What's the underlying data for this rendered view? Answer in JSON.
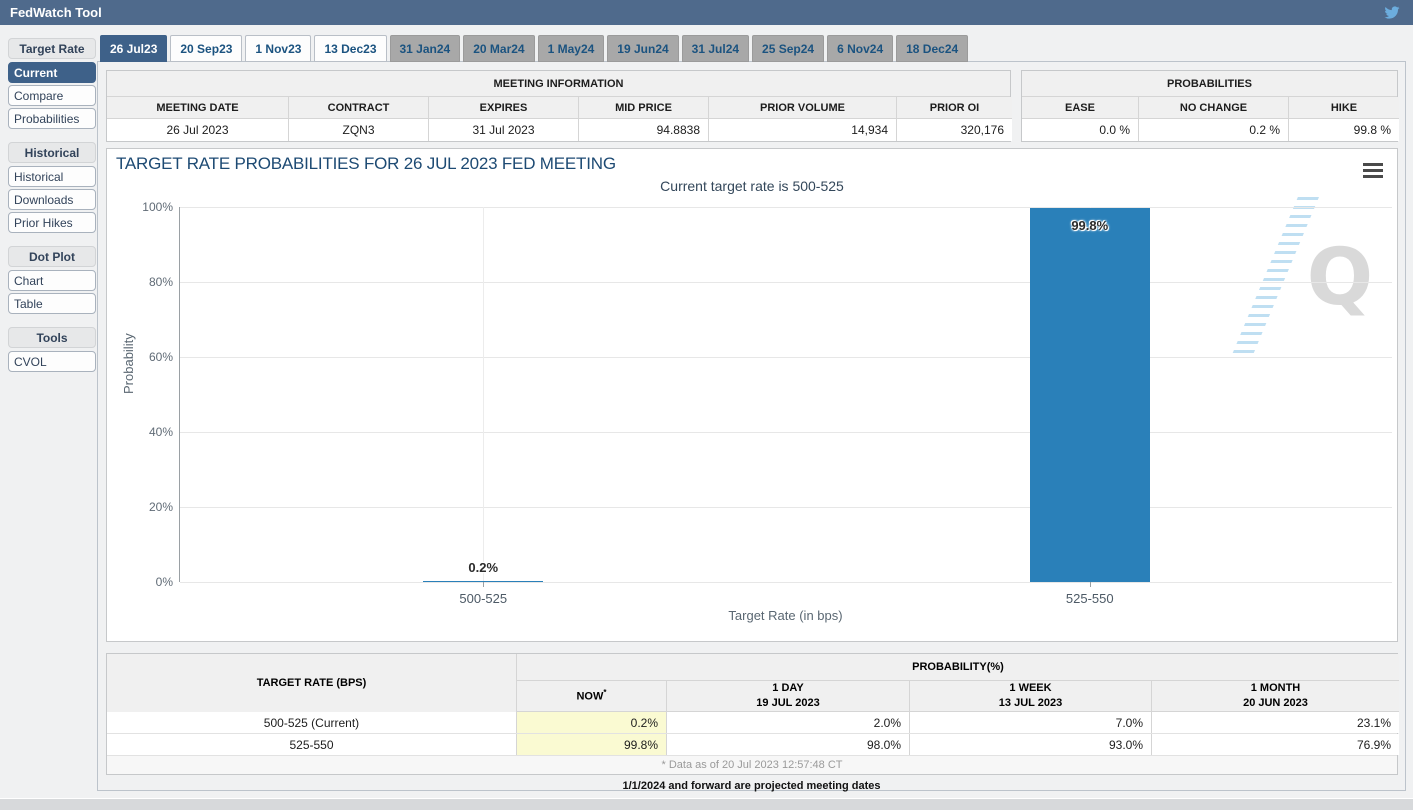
{
  "app": {
    "title": "FedWatch Tool",
    "header_color": "#4f6a8c",
    "accent_color": "#3e6189",
    "bar_color": "#2a80b9"
  },
  "sidebar": {
    "sections": [
      {
        "header": "Target Rate",
        "items": [
          {
            "label": "Current",
            "selected": true
          },
          {
            "label": "Compare",
            "selected": false
          },
          {
            "label": "Probabilities",
            "selected": false
          }
        ]
      },
      {
        "header": "Historical",
        "items": [
          {
            "label": "Historical",
            "selected": false
          },
          {
            "label": "Downloads",
            "selected": false
          },
          {
            "label": "Prior Hikes",
            "selected": false
          }
        ]
      },
      {
        "header": "Dot Plot",
        "items": [
          {
            "label": "Chart",
            "selected": false
          },
          {
            "label": "Table",
            "selected": false
          }
        ]
      },
      {
        "header": "Tools",
        "items": [
          {
            "label": "CVOL",
            "selected": false
          }
        ]
      }
    ]
  },
  "tabs": [
    {
      "label": "26 Jul23",
      "selected": true,
      "projected": false
    },
    {
      "label": "20 Sep23",
      "selected": false,
      "projected": false
    },
    {
      "label": "1 Nov23",
      "selected": false,
      "projected": false
    },
    {
      "label": "13 Dec23",
      "selected": false,
      "projected": false
    },
    {
      "label": "31 Jan24",
      "selected": false,
      "projected": true
    },
    {
      "label": "20 Mar24",
      "selected": false,
      "projected": true
    },
    {
      "label": "1 May24",
      "selected": false,
      "projected": true
    },
    {
      "label": "19 Jun24",
      "selected": false,
      "projected": true
    },
    {
      "label": "31 Jul24",
      "selected": false,
      "projected": true
    },
    {
      "label": "25 Sep24",
      "selected": false,
      "projected": true
    },
    {
      "label": "6 Nov24",
      "selected": false,
      "projected": true
    },
    {
      "label": "18 Dec24",
      "selected": false,
      "projected": true
    }
  ],
  "meeting_info": {
    "title": "MEETING INFORMATION",
    "headers": [
      "MEETING DATE",
      "CONTRACT",
      "EXPIRES",
      "MID PRICE",
      "PRIOR VOLUME",
      "PRIOR OI"
    ],
    "values": [
      "26 Jul 2023",
      "ZQN3",
      "31 Jul 2023",
      "94.8838",
      "14,934",
      "320,176"
    ]
  },
  "probabilities_summary": {
    "title": "PROBABILITIES",
    "headers": [
      "EASE",
      "NO CHANGE",
      "HIKE"
    ],
    "values": [
      "0.0 %",
      "0.2 %",
      "99.8 %"
    ]
  },
  "chart_data": {
    "type": "bar",
    "title": "TARGET RATE PROBABILITIES FOR 26 JUL 2023 FED MEETING",
    "subtitle": "Current target rate is 500-525",
    "categories": [
      "500-525",
      "525-550"
    ],
    "values": [
      0.2,
      99.8
    ],
    "value_labels": [
      "0.2%",
      "99.8%"
    ],
    "xlabel": "Target Rate (in bps)",
    "ylabel": "Probability",
    "ylim": [
      0,
      100
    ],
    "yticks": [
      0,
      20,
      40,
      60,
      80,
      100
    ],
    "ytick_labels": [
      "0%",
      "20%",
      "40%",
      "60%",
      "80%",
      "100%"
    ],
    "grid": true,
    "legend": "none",
    "bar_color": "#2a80b9",
    "watermark": "Q"
  },
  "prob_table": {
    "col1_header": "TARGET RATE (BPS)",
    "group_header": "PROBABILITY(%)",
    "sub_headers": [
      {
        "line1": "NOW",
        "sup": "*",
        "line2": ""
      },
      {
        "line1": "1 DAY",
        "sup": "",
        "line2": "19 JUL 2023"
      },
      {
        "line1": "1 WEEK",
        "sup": "",
        "line2": "13 JUL 2023"
      },
      {
        "line1": "1 MONTH",
        "sup": "",
        "line2": "20 JUN 2023"
      }
    ],
    "rows": [
      {
        "rate": "500-525 (Current)",
        "now": "0.2%",
        "day": "2.0%",
        "week": "7.0%",
        "month": "23.1%"
      },
      {
        "rate": "525-550",
        "now": "99.8%",
        "day": "98.0%",
        "week": "93.0%",
        "month": "76.9%"
      }
    ],
    "footnote": "* Data as of 20 Jul 2023 12:57:48 CT"
  },
  "projected_note": "1/1/2024 and forward are projected meeting dates"
}
